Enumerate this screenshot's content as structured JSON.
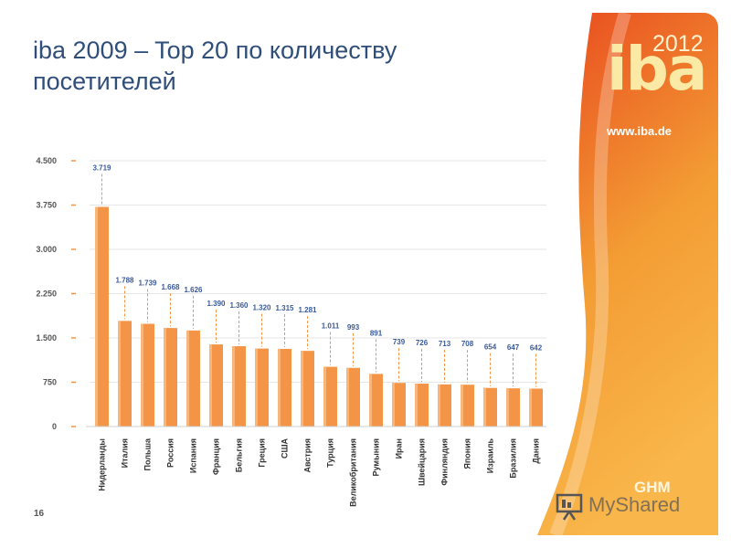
{
  "slide": {
    "title_line1": "iba 2009 – Top 20 по количеству",
    "title_line2": "посетителей",
    "page_number": "16"
  },
  "brand": {
    "logo_word": "iba",
    "logo_year": "2012",
    "url": "www.iba.de",
    "partner_logo": "GHM",
    "watermark": "MyShared",
    "colors": {
      "primary": "#f39c34",
      "deep": "#e8471e",
      "light": "#f9b64a"
    }
  },
  "chart_data": {
    "type": "bar",
    "categories": [
      "Нидерланды",
      "Италия",
      "Польша",
      "Россия",
      "Испания",
      "Франция",
      "Бельгия",
      "Греция",
      "США",
      "Австрия",
      "Турция",
      "Великобритания",
      "Румыния",
      "Иран",
      "Швейцария",
      "Финляндия",
      "Япония",
      "Израиль",
      "Бразилия",
      "Дания"
    ],
    "values": [
      3719,
      1788,
      1739,
      1668,
      1626,
      1390,
      1360,
      1320,
      1315,
      1281,
      1011,
      993,
      891,
      739,
      726,
      713,
      708,
      654,
      647,
      642
    ],
    "value_labels": [
      "3.719",
      "1.788",
      "1.739",
      "1.668",
      "1.626",
      "1.390",
      "1.360",
      "1.320",
      "1.315",
      "1.281",
      "1.011",
      "993",
      "891",
      "739",
      "726",
      "713",
      "708",
      "654",
      "647",
      "642"
    ],
    "y_ticks": [
      0,
      750,
      1500,
      2250,
      3000,
      3750,
      4500
    ],
    "y_tick_labels": [
      "0",
      "750",
      "1.500",
      "2.250",
      "3.000",
      "3.750",
      "4.500"
    ],
    "ylim": [
      0,
      4500
    ],
    "grid": true,
    "bar_color": "#f39446",
    "label_color": "#3a5a9a"
  }
}
